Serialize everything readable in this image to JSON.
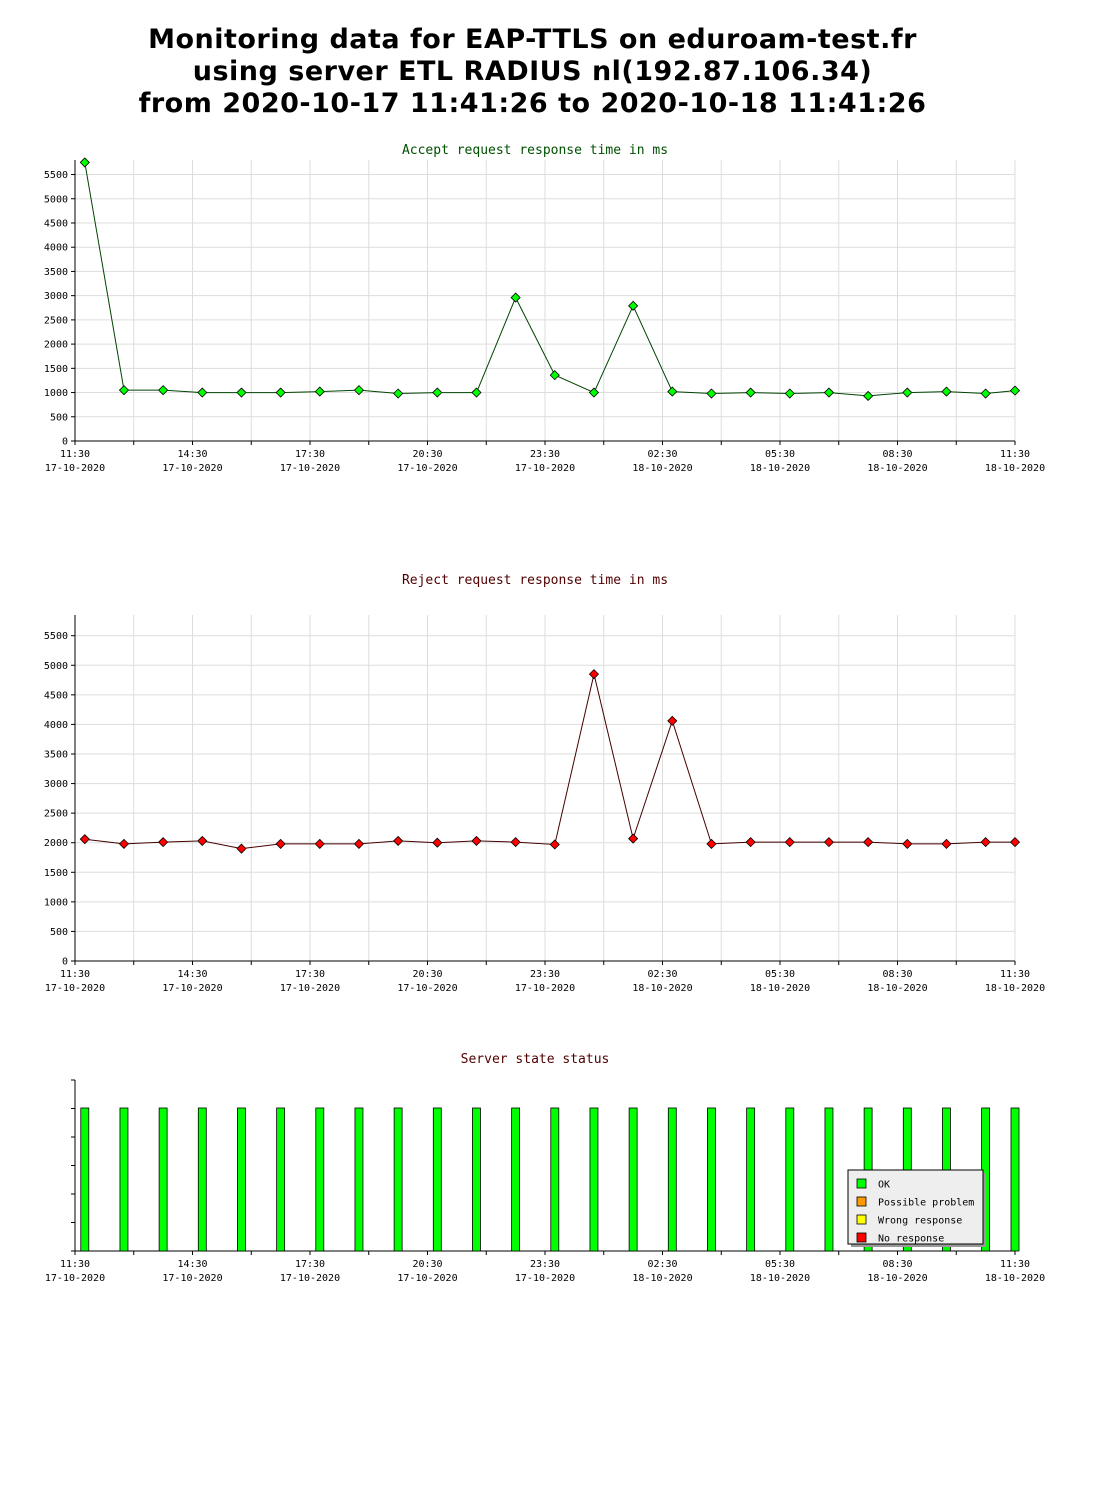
{
  "header": {
    "line1": "Monitoring data for EAP-TTLS on eduroam-test.fr",
    "line2": "using server ETL RADIUS nl(192.87.106.34)",
    "line3": "from 2020-10-17 11:41:26 to 2020-10-18 11:41:26"
  },
  "colors": {
    "accept_title": "#005000",
    "reject_title": "#500000",
    "status_title": "#500000",
    "accept_line": "#004400",
    "accept_marker": "#00ff00",
    "reject_line": "#440000",
    "reject_marker": "#ff0000",
    "status_ok": "#00ff00",
    "status_possible_problem": "#ff9900",
    "status_wrong_response": "#ffff00",
    "status_no_response": "#ff0000",
    "grid": "#dddddd"
  },
  "x_axis": {
    "ticks": [
      {
        "time": "11:30",
        "date": "17-10-2020"
      },
      {
        "time": "14:30",
        "date": "17-10-2020"
      },
      {
        "time": "17:30",
        "date": "17-10-2020"
      },
      {
        "time": "20:30",
        "date": "17-10-2020"
      },
      {
        "time": "23:30",
        "date": "17-10-2020"
      },
      {
        "time": "02:30",
        "date": "18-10-2020"
      },
      {
        "time": "05:30",
        "date": "18-10-2020"
      },
      {
        "time": "08:30",
        "date": "18-10-2020"
      },
      {
        "time": "11:30",
        "date": "18-10-2020"
      }
    ]
  },
  "chart_data": [
    {
      "type": "line",
      "title": "Accept request response time in ms",
      "xlabel": "",
      "ylabel": "",
      "xlim": [
        "2020-10-17 11:30",
        "2020-10-18 11:30"
      ],
      "ylim": [
        0,
        5800
      ],
      "yticks": [
        0,
        500,
        1000,
        1500,
        2000,
        2500,
        3000,
        3500,
        4000,
        4500,
        5000,
        5500
      ],
      "grid": true,
      "x": [
        "2020-10-17 11:45",
        "2020-10-17 12:45",
        "2020-10-17 13:45",
        "2020-10-17 14:45",
        "2020-10-17 15:45",
        "2020-10-17 16:45",
        "2020-10-17 17:45",
        "2020-10-17 18:45",
        "2020-10-17 19:45",
        "2020-10-17 20:45",
        "2020-10-17 21:45",
        "2020-10-17 22:45",
        "2020-10-17 23:45",
        "2020-10-18 00:45",
        "2020-10-18 01:45",
        "2020-10-18 02:45",
        "2020-10-18 03:45",
        "2020-10-18 04:45",
        "2020-10-18 05:45",
        "2020-10-18 06:45",
        "2020-10-18 07:45",
        "2020-10-18 08:45",
        "2020-10-18 09:45",
        "2020-10-18 10:45",
        "2020-10-18 11:30"
      ],
      "values": [
        5750,
        1050,
        1050,
        1000,
        1000,
        1000,
        1020,
        1050,
        980,
        1000,
        1000,
        2960,
        1360,
        1000,
        2790,
        1020,
        980,
        1000,
        980,
        1000,
        930,
        1000,
        1020,
        980,
        1040
      ]
    },
    {
      "type": "line",
      "title": "Reject request response time in ms",
      "xlabel": "",
      "ylabel": "",
      "xlim": [
        "2020-10-17 11:30",
        "2020-10-18 11:30"
      ],
      "ylim": [
        0,
        5850
      ],
      "yticks": [
        0,
        500,
        1000,
        1500,
        2000,
        2500,
        3000,
        3500,
        4000,
        4500,
        5000,
        5500
      ],
      "grid": true,
      "x": [
        "2020-10-17 11:45",
        "2020-10-17 12:45",
        "2020-10-17 13:45",
        "2020-10-17 14:45",
        "2020-10-17 15:45",
        "2020-10-17 16:45",
        "2020-10-17 17:45",
        "2020-10-17 18:45",
        "2020-10-17 19:45",
        "2020-10-17 20:45",
        "2020-10-17 21:45",
        "2020-10-17 22:45",
        "2020-10-17 23:45",
        "2020-10-18 00:45",
        "2020-10-18 01:45",
        "2020-10-18 02:45",
        "2020-10-18 03:45",
        "2020-10-18 04:45",
        "2020-10-18 05:45",
        "2020-10-18 06:45",
        "2020-10-18 07:45",
        "2020-10-18 08:45",
        "2020-10-18 09:45",
        "2020-10-18 10:45",
        "2020-10-18 11:30"
      ],
      "values": [
        2060,
        1980,
        2010,
        2030,
        1900,
        1980,
        1980,
        1980,
        2030,
        2000,
        2030,
        2010,
        1970,
        4850,
        2070,
        4060,
        1980,
        2010,
        2010,
        2010,
        2010,
        1980,
        1980,
        2010,
        2010
      ]
    },
    {
      "type": "bar",
      "title": "Server state status",
      "xlabel": "",
      "ylabel": "",
      "xlim": [
        "2020-10-17 11:30",
        "2020-10-18 11:30"
      ],
      "grid": false,
      "legend_position": "bottom-right",
      "legend": [
        "OK",
        "Possible problem",
        "Wrong response",
        "No response"
      ],
      "x": [
        "2020-10-17 11:45",
        "2020-10-17 12:45",
        "2020-10-17 13:45",
        "2020-10-17 14:45",
        "2020-10-17 15:45",
        "2020-10-17 16:45",
        "2020-10-17 17:45",
        "2020-10-17 18:45",
        "2020-10-17 19:45",
        "2020-10-17 20:45",
        "2020-10-17 21:45",
        "2020-10-17 22:45",
        "2020-10-17 23:45",
        "2020-10-18 00:45",
        "2020-10-18 01:45",
        "2020-10-18 02:45",
        "2020-10-18 03:45",
        "2020-10-18 04:45",
        "2020-10-18 05:45",
        "2020-10-18 06:45",
        "2020-10-18 07:45",
        "2020-10-18 08:45",
        "2020-10-18 09:45",
        "2020-10-18 10:45",
        "2020-10-18 11:30"
      ],
      "values": [
        "OK",
        "OK",
        "OK",
        "OK",
        "OK",
        "OK",
        "OK",
        "OK",
        "OK",
        "OK",
        "OK",
        "OK",
        "OK",
        "OK",
        "OK",
        "OK",
        "OK",
        "OK",
        "OK",
        "OK",
        "OK",
        "OK",
        "OK",
        "OK",
        "OK"
      ]
    }
  ]
}
